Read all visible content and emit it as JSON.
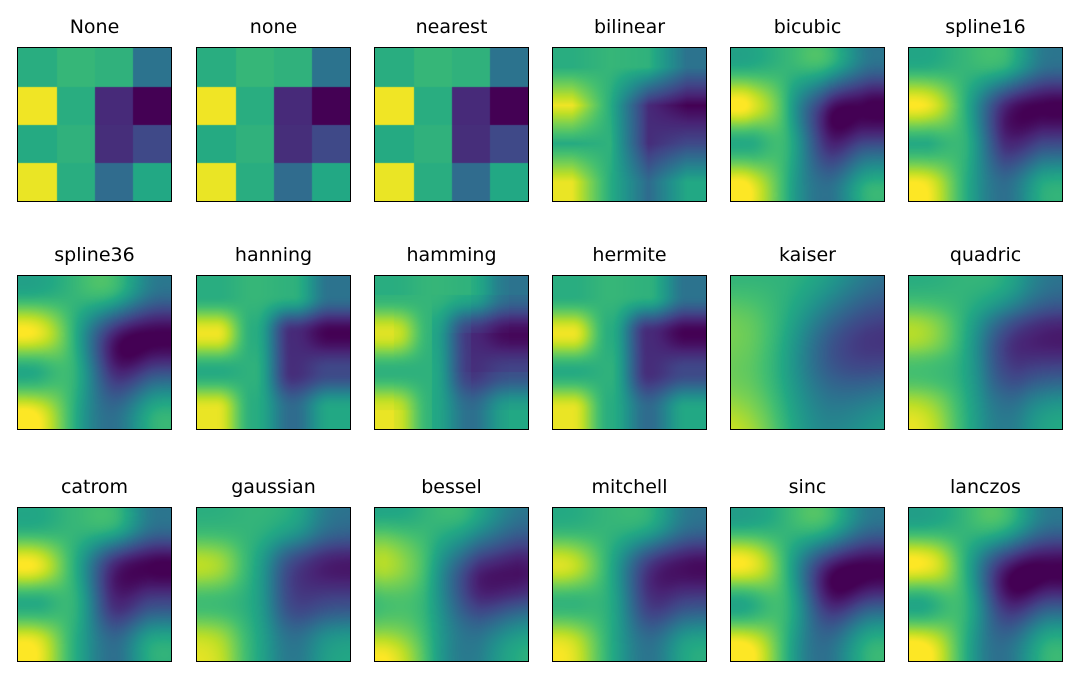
{
  "chart_data": {
    "type": "heatmap",
    "colormap": "viridis",
    "grid": false,
    "axes_ticks": false,
    "matrix": [
      [
        0.62,
        0.66,
        0.64,
        0.38
      ],
      [
        0.98,
        0.62,
        0.12,
        0.0
      ],
      [
        0.61,
        0.64,
        0.13,
        0.22
      ],
      [
        0.97,
        0.62,
        0.35,
        0.6
      ]
    ],
    "panels": [
      {
        "title": "None",
        "interpolation": "none"
      },
      {
        "title": "none",
        "interpolation": "none"
      },
      {
        "title": "nearest",
        "interpolation": "nearest"
      },
      {
        "title": "bilinear",
        "interpolation": "bilinear"
      },
      {
        "title": "bicubic",
        "interpolation": "bicubic"
      },
      {
        "title": "spline16",
        "interpolation": "spline16"
      },
      {
        "title": "spline36",
        "interpolation": "spline36"
      },
      {
        "title": "hanning",
        "interpolation": "hanning"
      },
      {
        "title": "hamming",
        "interpolation": "hamming"
      },
      {
        "title": "hermite",
        "interpolation": "hermite"
      },
      {
        "title": "kaiser",
        "interpolation": "kaiser"
      },
      {
        "title": "quadric",
        "interpolation": "quadric"
      },
      {
        "title": "catrom",
        "interpolation": "catrom"
      },
      {
        "title": "gaussian",
        "interpolation": "gaussian"
      },
      {
        "title": "bessel",
        "interpolation": "bessel"
      },
      {
        "title": "mitchell",
        "interpolation": "mitchell"
      },
      {
        "title": "sinc",
        "interpolation": "sinc"
      },
      {
        "title": "lanczos",
        "interpolation": "lanczos"
      }
    ]
  }
}
